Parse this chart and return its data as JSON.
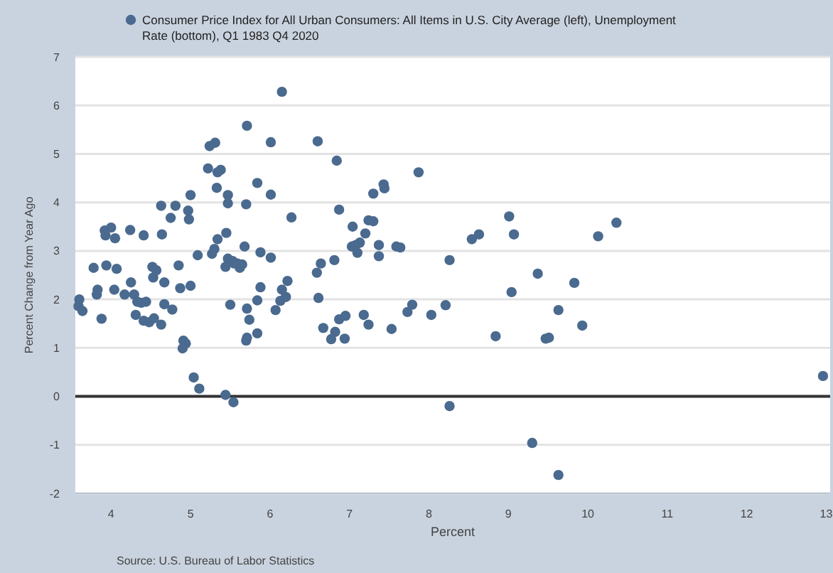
{
  "chart_data": {
    "type": "scatter",
    "xlabel": "Percent",
    "ylabel": "Percent Change from Year Ago",
    "annotations": [
      "Source: U.S. Bureau of Labor Statistics"
    ],
    "xlim": [
      3.55,
      13.05
    ],
    "ylim": [
      -2,
      7
    ],
    "xticks": [
      4,
      5,
      6,
      7,
      8,
      9,
      10,
      11,
      12,
      13
    ],
    "yticks": [
      -2,
      -1,
      0,
      1,
      2,
      3,
      4,
      5,
      6,
      7
    ],
    "grid": "y",
    "legend": "top",
    "marker": "circle",
    "ref_lines": [
      {
        "axis": "y",
        "value": 0,
        "color": "#333333"
      }
    ],
    "series": [
      {
        "name": "Consumer Price Index for All Urban Consumers: All Items in U.S. City Average (left), Unemployment Rate (bottom), Q1 1983 Q4 2020",
        "color": "#4a6a8f",
        "x": [
          3.6,
          3.59,
          3.64,
          3.78,
          3.83,
          3.82,
          3.88,
          3.92,
          3.93,
          4.0,
          4.05,
          3.94,
          4.07,
          4.04,
          4.17,
          4.25,
          4.29,
          4.24,
          4.41,
          4.33,
          4.38,
          4.44,
          4.31,
          4.41,
          4.48,
          4.54,
          4.63,
          4.52,
          4.57,
          4.53,
          4.67,
          4.64,
          4.63,
          4.81,
          4.75,
          4.67,
          4.77,
          4.85,
          4.87,
          5.0,
          4.91,
          4.94,
          4.9,
          4.97,
          4.98,
          5.0,
          5.09,
          5.04,
          5.11,
          5.22,
          5.24,
          5.31,
          5.34,
          5.38,
          5.33,
          5.27,
          5.3,
          5.34,
          5.47,
          5.47,
          5.45,
          5.5,
          5.44,
          5.47,
          5.53,
          5.59,
          5.62,
          5.65,
          5.55,
          5.44,
          5.54,
          5.71,
          5.7,
          5.68,
          5.71,
          5.74,
          5.71,
          5.7,
          5.84,
          5.88,
          5.88,
          5.84,
          5.84,
          6.01,
          6.01,
          6.01,
          6.07,
          6.13,
          6.15,
          6.2,
          6.22,
          6.15,
          6.27,
          6.6,
          6.64,
          6.59,
          6.61,
          6.67,
          6.84,
          7.87,
          6.87,
          7.04,
          7.24,
          7.3,
          7.2,
          7.3,
          7.43,
          7.44,
          7.03,
          7.08,
          7.13,
          7.1,
          7.37,
          7.37,
          7.59,
          7.64,
          6.81,
          6.82,
          6.77,
          6.87,
          6.95,
          6.94,
          7.18,
          7.24,
          7.53,
          7.73,
          7.79,
          8.03,
          8.21,
          8.26,
          8.26,
          8.54,
          8.63,
          8.84,
          9.01,
          9.07,
          9.04,
          9.37,
          9.47,
          9.51,
          9.63,
          9.3,
          9.63,
          9.83,
          9.93,
          10.13,
          10.36,
          12.96
        ],
        "values": [
          2.0,
          1.86,
          1.76,
          2.65,
          2.2,
          2.1,
          1.6,
          3.42,
          3.32,
          3.48,
          3.26,
          2.7,
          2.63,
          2.2,
          2.1,
          2.35,
          2.1,
          3.43,
          3.32,
          1.95,
          1.93,
          1.95,
          1.68,
          1.56,
          1.53,
          1.61,
          1.48,
          2.67,
          2.6,
          2.45,
          2.35,
          3.34,
          3.93,
          3.93,
          3.68,
          1.9,
          1.79,
          2.7,
          2.23,
          2.28,
          1.15,
          1.09,
          0.99,
          3.83,
          3.65,
          4.15,
          2.91,
          0.39,
          0.16,
          4.7,
          5.16,
          5.23,
          4.62,
          4.67,
          4.3,
          2.94,
          3.04,
          3.24,
          4.15,
          3.98,
          3.37,
          1.89,
          2.67,
          2.84,
          2.79,
          2.74,
          2.65,
          2.72,
          2.74,
          0.03,
          -0.12,
          5.58,
          3.96,
          3.09,
          1.81,
          1.58,
          1.21,
          1.15,
          4.4,
          2.97,
          2.25,
          1.98,
          1.3,
          5.24,
          4.16,
          2.86,
          1.78,
          1.97,
          2.2,
          2.05,
          2.38,
          6.28,
          3.69,
          5.26,
          2.74,
          2.55,
          2.03,
          1.41,
          4.86,
          4.62,
          3.85,
          3.5,
          3.63,
          3.61,
          3.36,
          4.18,
          4.37,
          4.29,
          3.09,
          3.12,
          3.17,
          2.96,
          3.12,
          2.89,
          3.09,
          3.07,
          2.81,
          1.33,
          1.18,
          1.59,
          1.66,
          1.19,
          1.68,
          1.48,
          1.39,
          1.74,
          1.89,
          1.68,
          1.88,
          2.81,
          -0.2,
          3.24,
          3.34,
          1.24,
          3.71,
          3.34,
          2.15,
          2.53,
          1.19,
          1.21,
          1.78,
          -0.96,
          -1.62,
          2.34,
          1.46,
          3.3,
          3.58,
          0.42
        ]
      }
    ]
  }
}
